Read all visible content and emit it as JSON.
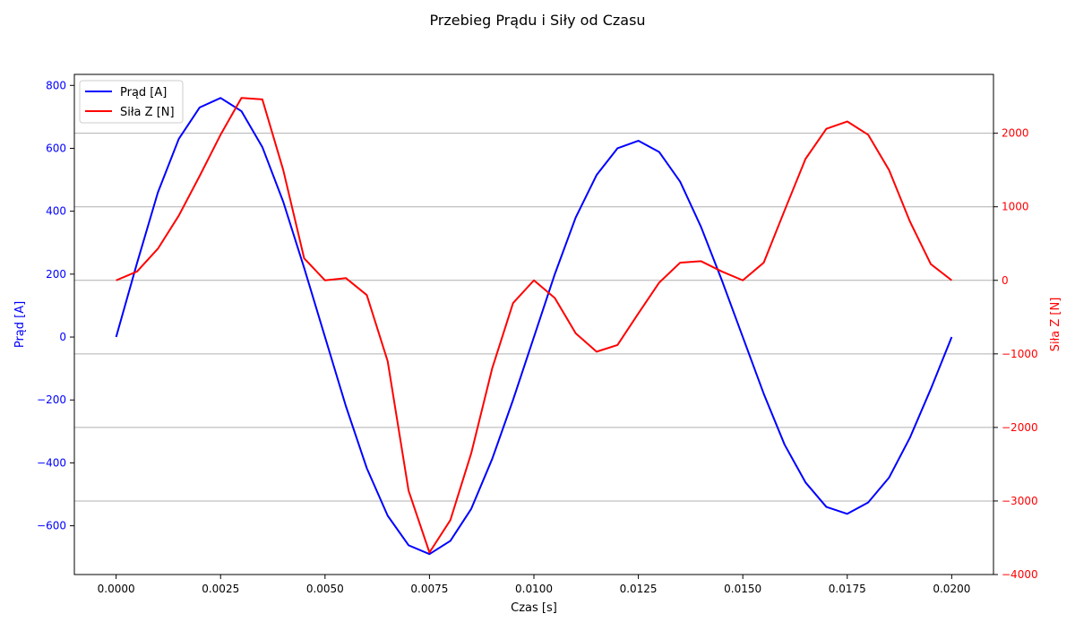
{
  "chart_data": {
    "type": "line",
    "title": "Przebieg Prądu i Siły od Czasu",
    "xlabel": "Czas [s]",
    "ylabel_left": "Prąd [A]",
    "ylabel_right": "Siła Z [N]",
    "xlim": [
      -0.001,
      0.021
    ],
    "ylim_left": [
      -755,
      835
    ],
    "ylim_right": [
      -4000,
      2800
    ],
    "x_ticks": [
      0.0,
      0.0025,
      0.005,
      0.0075,
      0.01,
      0.0125,
      0.015,
      0.0175,
      0.02
    ],
    "x_tick_labels": [
      "0.0000",
      "0.0025",
      "0.0050",
      "0.0075",
      "0.0100",
      "0.0125",
      "0.0150",
      "0.0175",
      "0.0200"
    ],
    "left_ticks": [
      800,
      600,
      400,
      200,
      0,
      -200,
      -400,
      -600
    ],
    "left_tick_labels": [
      "800",
      "600",
      "400",
      "200",
      "0",
      "−200",
      "−400",
      "−600"
    ],
    "right_ticks": [
      2000,
      1000,
      0,
      -1000,
      -2000,
      -3000,
      -4000
    ],
    "right_tick_labels": [
      "2000",
      "1000",
      "0",
      "−1000",
      "−2000",
      "−3000",
      "−4000"
    ],
    "grid": "horizontal (right axis)",
    "legend_position": "top-left",
    "x": [
      0.0,
      0.0005,
      0.001,
      0.0015,
      0.002,
      0.0025,
      0.003,
      0.0035,
      0.004,
      0.0045,
      0.005,
      0.0055,
      0.006,
      0.0065,
      0.007,
      0.0075,
      0.008,
      0.0085,
      0.009,
      0.0095,
      0.01,
      0.0105,
      0.011,
      0.0115,
      0.012,
      0.0125,
      0.013,
      0.0135,
      0.014,
      0.0145,
      0.015,
      0.0155,
      0.016,
      0.0165,
      0.017,
      0.0175,
      0.018,
      0.0185,
      0.019,
      0.0195,
      0.02
    ],
    "series": [
      {
        "name": "Prąd [A]",
        "axis": "left",
        "color": "#0000ff",
        "values": [
          0,
          235,
          460,
          630,
          730,
          760,
          718,
          604,
          430,
          220,
          0,
          -220,
          -417,
          -568,
          -662,
          -690,
          -648,
          -546,
          -388,
          -200,
          0,
          200,
          380,
          515,
          600,
          624,
          588,
          494,
          350,
          180,
          0,
          -180,
          -342,
          -462,
          -540,
          -562,
          -526,
          -447,
          -320,
          -165,
          0
        ]
      },
      {
        "name": "Siła Z [N]",
        "axis": "right",
        "color": "#ff0000",
        "values": [
          0,
          120,
          430,
          880,
          1420,
          1980,
          2480,
          2460,
          1500,
          300,
          0,
          30,
          -200,
          -1100,
          -2860,
          -3700,
          -3260,
          -2350,
          -1200,
          -310,
          0,
          -240,
          -720,
          -970,
          -880,
          -450,
          -30,
          240,
          260,
          120,
          0,
          240,
          950,
          1650,
          2060,
          2160,
          1980,
          1500,
          800,
          220,
          0
        ]
      }
    ]
  }
}
